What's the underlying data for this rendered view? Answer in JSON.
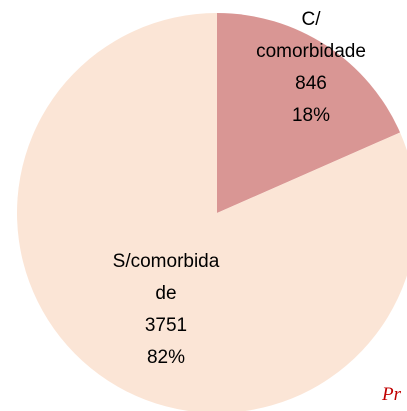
{
  "chart_data": {
    "type": "pie",
    "categories": [
      "C/ comorbidade",
      "S/comorbidade"
    ],
    "values": [
      846,
      3751
    ],
    "percent_labels": [
      "18%",
      "82%"
    ],
    "colors": [
      "#d99694",
      "#fbe5d6"
    ],
    "watermark": "Pr"
  }
}
